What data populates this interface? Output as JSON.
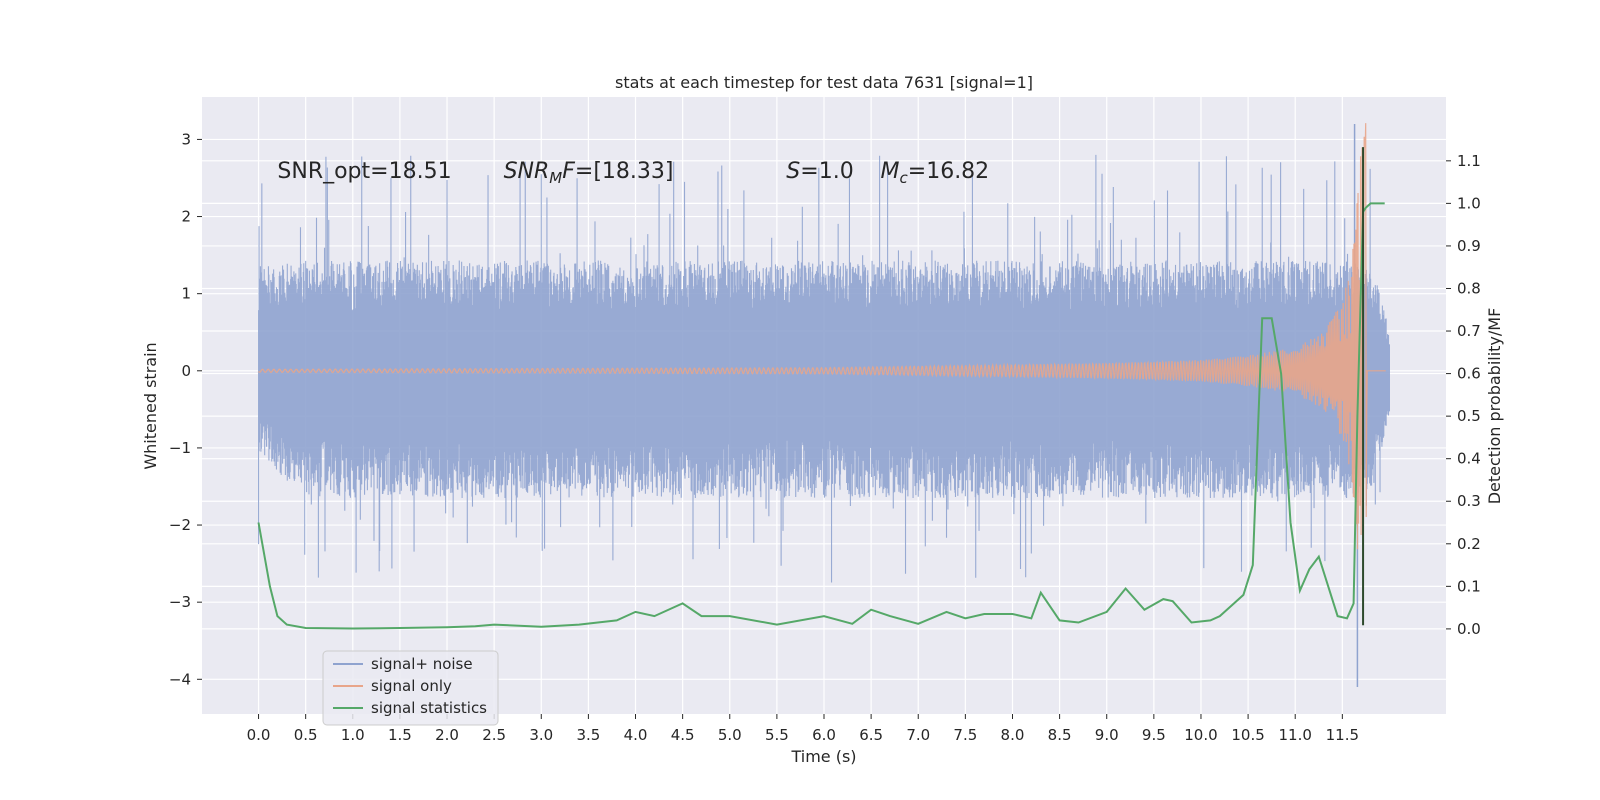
{
  "chart_data": {
    "type": "line",
    "title": "stats at each timestep for test data 7631 [signal=1]",
    "xlabel": "Time (s)",
    "ylabel": "Whitened strain",
    "y2label": "Detection probability/MF",
    "xlim": [
      -0.6,
      12.6
    ],
    "ylim": [
      -4.45,
      3.55
    ],
    "y2lim": [
      -0.2,
      1.25
    ],
    "xticks": [
      0.0,
      0.5,
      1.0,
      1.5,
      2.0,
      2.5,
      3.0,
      3.5,
      4.0,
      4.5,
      5.0,
      5.5,
      6.0,
      6.5,
      7.0,
      7.5,
      8.0,
      8.5,
      9.0,
      9.5,
      10.0,
      10.5,
      11.0,
      11.5
    ],
    "xtick_labels": [
      "0.0",
      "0.5",
      "1.0",
      "1.5",
      "2.0",
      "2.5",
      "3.0",
      "3.5",
      "4.0",
      "4.5",
      "5.0",
      "5.5",
      "6.0",
      "6.5",
      "7.0",
      "7.5",
      "8.0",
      "8.5",
      "9.0",
      "9.5",
      "10.0",
      "10.5",
      "11.0",
      "11.5"
    ],
    "yticks": [
      3,
      2,
      1,
      0,
      -1,
      -2,
      -3,
      -4
    ],
    "ytick_labels": [
      "3",
      "2",
      "1",
      "0",
      "−1",
      "−2",
      "−3",
      "−4"
    ],
    "y2ticks": [
      1.1,
      1.0,
      0.9,
      0.8,
      0.7,
      0.6,
      0.5,
      0.4,
      0.3,
      0.2,
      0.1,
      0.0
    ],
    "y2tick_labels": [
      "1.1",
      "1.0",
      "0.9",
      "0.8",
      "0.7",
      "0.6",
      "0.5",
      "0.4",
      "0.3",
      "0.2",
      "0.1",
      "0.0"
    ],
    "grid": true,
    "annotations": [
      {
        "id": "snr-opt",
        "x": 0.2,
        "y": 2.5,
        "parts": [
          {
            "t": "SNR_opt=18.51"
          }
        ]
      },
      {
        "id": "snr-mf",
        "x": 2.6,
        "y": 2.5,
        "parts": [
          {
            "t": "SNR",
            "i": true
          },
          {
            "t": "M",
            "i": true,
            "sub": true
          },
          {
            "t": "F",
            "i": true
          },
          {
            "t": "=[18.33]"
          }
        ]
      },
      {
        "id": "s-value",
        "x": 5.6,
        "y": 2.5,
        "parts": [
          {
            "t": "S",
            "i": true
          },
          {
            "t": "=1.0"
          }
        ]
      },
      {
        "id": "mc-value",
        "x": 6.6,
        "y": 2.5,
        "parts": [
          {
            "t": "M",
            "i": true
          },
          {
            "t": "c",
            "i": true,
            "sub": true
          },
          {
            "t": "=16.82"
          }
        ]
      }
    ],
    "noise_envelope": {
      "x": [
        0.0,
        0.5,
        1.0,
        1.5,
        2.0,
        2.5,
        3.0,
        3.5,
        4.0,
        4.5,
        5.0,
        5.5,
        6.0,
        6.5,
        7.0,
        7.5,
        8.0,
        8.5,
        9.0,
        9.5,
        10.0,
        10.5,
        11.0,
        11.5,
        11.8,
        12.0
      ],
      "upper": [
        1.25,
        1.3,
        1.3,
        1.3,
        1.3,
        1.3,
        1.3,
        1.3,
        1.3,
        1.3,
        1.3,
        1.3,
        1.3,
        1.3,
        1.3,
        1.3,
        1.3,
        1.3,
        1.3,
        1.3,
        1.3,
        1.3,
        1.3,
        1.3,
        1.3,
        0.5
      ],
      "lower": [
        -1.0,
        -1.5,
        -1.5,
        -1.5,
        -1.5,
        -1.5,
        -1.5,
        -1.5,
        -1.5,
        -1.5,
        -1.5,
        -1.5,
        -1.5,
        -1.5,
        -1.5,
        -1.5,
        -1.5,
        -1.5,
        -1.5,
        -1.5,
        -1.5,
        -1.5,
        -1.5,
        -1.5,
        -1.5,
        -0.5
      ],
      "spike_max": 3.2,
      "spike_min": -4.1
    },
    "series": [
      {
        "name": "signal+ noise",
        "color": "#8fa3cf",
        "axis": "left",
        "note": "dense noise trace"
      },
      {
        "name": "signal only",
        "color": "#e8a58a",
        "axis": "left",
        "x": [
          0.0,
          6.0,
          7.0,
          8.0,
          9.0,
          10.0,
          10.5,
          11.0,
          11.3,
          11.5,
          11.6,
          11.7,
          11.75,
          11.8,
          12.0
        ],
        "amp": [
          0.02,
          0.04,
          0.06,
          0.08,
          0.1,
          0.14,
          0.2,
          0.3,
          0.5,
          0.9,
          1.4,
          2.9,
          3.3,
          0.0,
          0.0
        ]
      },
      {
        "name": "signal statistics",
        "color": "#55a868",
        "axis": "right",
        "x": [
          0.0,
          0.12,
          0.2,
          0.3,
          0.5,
          1.0,
          1.5,
          2.0,
          2.3,
          2.5,
          3.0,
          3.4,
          3.6,
          3.8,
          4.0,
          4.2,
          4.5,
          4.7,
          5.0,
          5.5,
          6.0,
          6.3,
          6.5,
          6.7,
          7.0,
          7.3,
          7.5,
          7.7,
          8.0,
          8.2,
          8.3,
          8.5,
          8.7,
          9.0,
          9.2,
          9.4,
          9.6,
          9.7,
          9.9,
          10.1,
          10.2,
          10.35,
          10.45,
          10.55,
          10.65,
          10.75,
          10.85,
          10.95,
          11.05,
          11.15,
          11.25,
          11.35,
          11.45,
          11.55,
          11.62,
          11.66,
          11.72,
          11.75,
          11.8,
          11.85,
          11.95
        ],
        "values": [
          0.25,
          0.1,
          0.03,
          0.01,
          0.002,
          0.001,
          0.002,
          0.004,
          0.006,
          0.01,
          0.005,
          0.01,
          0.015,
          0.02,
          0.04,
          0.03,
          0.06,
          0.03,
          0.03,
          0.01,
          0.03,
          0.012,
          0.045,
          0.03,
          0.012,
          0.04,
          0.025,
          0.035,
          0.035,
          0.025,
          0.085,
          0.02,
          0.015,
          0.04,
          0.095,
          0.045,
          0.07,
          0.065,
          0.015,
          0.02,
          0.03,
          0.06,
          0.08,
          0.15,
          0.73,
          0.73,
          0.6,
          0.25,
          0.09,
          0.14,
          0.17,
          0.1,
          0.03,
          0.025,
          0.06,
          0.5,
          0.98,
          0.99,
          1.0,
          1.0,
          1.0
        ]
      }
    ],
    "vertical_line": {
      "x": 11.72,
      "y_top": 2.9,
      "y_bottom": -3.3,
      "color": "#2d4a2d"
    },
    "legend": {
      "placement": "lower-left",
      "entries": [
        "signal+ noise",
        "signal only",
        "signal statistics"
      ]
    }
  }
}
